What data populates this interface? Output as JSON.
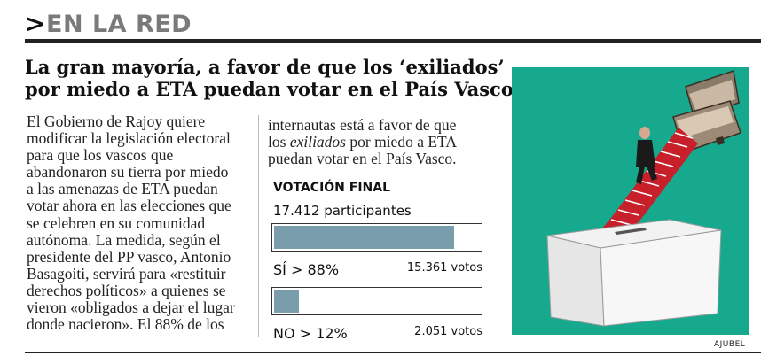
{
  "section": {
    "label": "EN LA RED",
    "chevron_icon": "chevron-right-icon"
  },
  "headline": {
    "line1": "La gran mayoría, a favor de que los ‘exiliados’",
    "line2": "por miedo a ETA puedan votar en el País Vasco"
  },
  "body": {
    "col1": [
      "El Gobierno de Rajoy quiere",
      "modificar la legislación electoral",
      "para que los vascos que",
      "abandonaron su tierra por miedo",
      "a las amenazas de ETA puedan",
      "votar ahora en las elecciones que",
      "se celebren en su comunidad",
      "autónoma. La medida, según el",
      "presidente del PP vasco, Antonio",
      "Basagoiti, servirá para «restituir",
      "derechos políticos» a quienes se",
      "vieron «obligados a dejar el lugar",
      "donde nacieron». El 88% de los"
    ],
    "col2_line1": "internautas está a favor de que",
    "col2_line2_pre": "los ",
    "col2_line2_em": "exiliados",
    "col2_line2_post": " por miedo a ETA",
    "col2_line3": "puedan votar en el País Vasco."
  },
  "poll": {
    "title": "VOTACIÓN FINAL",
    "participants": "17.412 participantes",
    "bar_color": "#7a9dab",
    "options": [
      {
        "label": "SÍ > 88%",
        "votes": "15.361 votos",
        "percent": 88
      },
      {
        "label": "NO > 12%",
        "votes": "2.051 votos",
        "percent": 12
      }
    ]
  },
  "illustration": {
    "background": "#17a98e",
    "credit": "AJUBEL"
  }
}
